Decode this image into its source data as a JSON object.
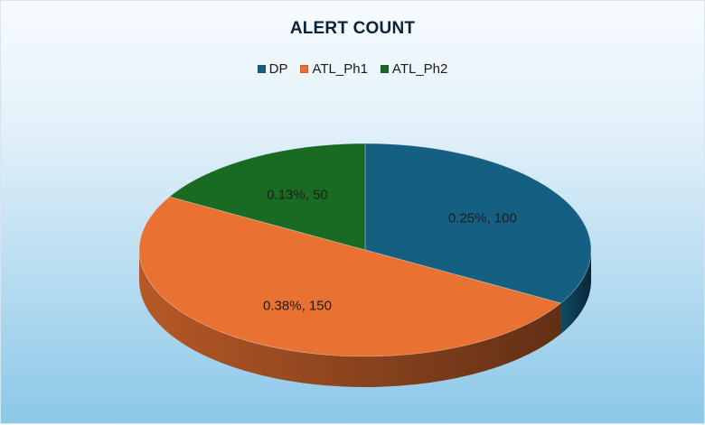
{
  "chart_data": {
    "type": "pie",
    "title": "ALERT COUNT",
    "categories": [
      "DP",
      "ATL_Ph1",
      "ATL_Ph2"
    ],
    "values": [
      100,
      150,
      50
    ],
    "data_labels": [
      "0.25%, 100",
      "0.38%, 150",
      "0.13%, 50"
    ],
    "colors": [
      "#145f82",
      "#e97132",
      "#196b24"
    ],
    "legend_position": "top",
    "style": "3d-pie"
  }
}
